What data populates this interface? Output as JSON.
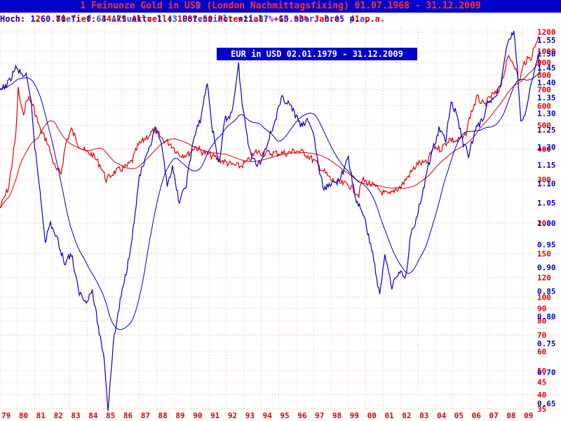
{
  "header": {
    "title_red": "1 Feinunze Gold in US$ (London Nachmittagsfixing) 01.07.1968 - 31.12.2009",
    "title_overlay": "1 Feinunze Gold in USD (London Nachmittagsfixing) 01.07.1968 - 31.12.2009",
    "stats_red": "Hoch: 1260.80  Tief: 34.75  Aktuell: 1087.50  Potenzial: +15.93%  Jahre: 41  p.a.",
    "stats_blue": "Hoch: 1.60  Tief: 0.64  Aktuell: 1.43  Potenzial: +11.87%  GD aber: 0.05 p.a."
  },
  "subtitle": "EUR in USD 02.01.1979 - 31.12.2009",
  "colors": {
    "gold": "#e00000",
    "eur": "#0000d0",
    "title_bg": "#0000c8",
    "grid": "#ff8080"
  },
  "chart_data": {
    "type": "line",
    "x_ticks": [
      "79",
      "80",
      "81",
      "82",
      "83",
      "84",
      "85",
      "86",
      "87",
      "88",
      "89",
      "90",
      "91",
      "92",
      "93",
      "94",
      "95",
      "96",
      "97",
      "98",
      "99",
      "00",
      "01",
      "02",
      "03",
      "04",
      "05",
      "06",
      "07",
      "08",
      "09"
    ],
    "x_range": [
      1979,
      2010
    ],
    "y_right_eur": {
      "ticks": [
        "0.65",
        "0.70",
        "0.75",
        "0.80",
        "0.85",
        "0.90",
        "0.95",
        "1.00",
        "1.05",
        "1.10",
        "1.15",
        "1.20",
        "1.25",
        "1.30",
        "1.35",
        "1.40",
        "1.45",
        "1.50",
        "1.55"
      ],
      "range": [
        0.64,
        1.6
      ],
      "scale": "log"
    },
    "y_right_gold": {
      "ticks": [
        "35",
        "40",
        "45",
        "50",
        "60",
        "70",
        "80",
        "90",
        "100",
        "120",
        "150",
        "200",
        "300",
        "400",
        "500",
        "600",
        "700",
        "800",
        "900",
        "1000",
        "1200"
      ],
      "range": [
        34.75,
        1260
      ],
      "scale": "log"
    },
    "series": [
      {
        "name": "Gold (USD)",
        "color": "#e00000",
        "points": [
          [
            1979.0,
            230
          ],
          [
            1979.5,
            280
          ],
          [
            1979.9,
            450
          ],
          [
            1980.05,
            700
          ],
          [
            1980.3,
            550
          ],
          [
            1980.6,
            650
          ],
          [
            1980.9,
            600
          ],
          [
            1981.3,
            480
          ],
          [
            1981.7,
            430
          ],
          [
            1982.2,
            330
          ],
          [
            1982.5,
            320
          ],
          [
            1982.8,
            430
          ],
          [
            1983.1,
            480
          ],
          [
            1983.5,
            420
          ],
          [
            1983.9,
            390
          ],
          [
            1984.3,
            380
          ],
          [
            1984.8,
            340
          ],
          [
            1985.1,
            300
          ],
          [
            1985.5,
            320
          ],
          [
            1985.9,
            330
          ],
          [
            1986.3,
            340
          ],
          [
            1986.6,
            360
          ],
          [
            1986.9,
            410
          ],
          [
            1987.3,
            440
          ],
          [
            1987.9,
            480
          ],
          [
            1988.3,
            440
          ],
          [
            1988.8,
            420
          ],
          [
            1989.3,
            380
          ],
          [
            1989.8,
            380
          ],
          [
            1990.2,
            410
          ],
          [
            1990.6,
            390
          ],
          [
            1991.0,
            380
          ],
          [
            1991.5,
            365
          ],
          [
            1991.9,
            355
          ],
          [
            1992.3,
            345
          ],
          [
            1992.8,
            340
          ],
          [
            1993.3,
            360
          ],
          [
            1993.7,
            390
          ],
          [
            1994.1,
            385
          ],
          [
            1994.5,
            385
          ],
          [
            1995.0,
            385
          ],
          [
            1995.5,
            385
          ],
          [
            1996.0,
            395
          ],
          [
            1996.5,
            385
          ],
          [
            1997.0,
            360
          ],
          [
            1997.5,
            330
          ],
          [
            1998.0,
            300
          ],
          [
            1998.5,
            290
          ],
          [
            1999.0,
            287
          ],
          [
            1999.6,
            260
          ],
          [
            1999.8,
            300
          ],
          [
            2000.2,
            290
          ],
          [
            2000.7,
            275
          ],
          [
            2001.0,
            265
          ],
          [
            2001.4,
            260
          ],
          [
            2001.7,
            275
          ],
          [
            2002.0,
            280
          ],
          [
            2002.5,
            315
          ],
          [
            2003.0,
            350
          ],
          [
            2003.5,
            350
          ],
          [
            2003.9,
            410
          ],
          [
            2004.3,
            400
          ],
          [
            2004.8,
            440
          ],
          [
            2005.2,
            430
          ],
          [
            2005.7,
            450
          ],
          [
            2006.0,
            550
          ],
          [
            2006.4,
            650
          ],
          [
            2006.8,
            600
          ],
          [
            2007.2,
            660
          ],
          [
            2007.6,
            680
          ],
          [
            2007.9,
            800
          ],
          [
            2008.2,
            950
          ],
          [
            2008.5,
            900
          ],
          [
            2008.8,
            750
          ],
          [
            2009.1,
            900
          ],
          [
            2009.5,
            950
          ],
          [
            2009.9,
            1150
          ],
          [
            2010.0,
            1087
          ]
        ]
      },
      {
        "name": "EUR in USD",
        "color": "#0000d0",
        "points": [
          [
            1979.0,
            1.37
          ],
          [
            1979.5,
            1.4
          ],
          [
            1979.9,
            1.45
          ],
          [
            1980.2,
            1.43
          ],
          [
            1980.5,
            1.42
          ],
          [
            1980.8,
            1.33
          ],
          [
            1981.0,
            1.2
          ],
          [
            1981.3,
            1.08
          ],
          [
            1981.6,
            0.96
          ],
          [
            1981.9,
            1.0
          ],
          [
            1982.3,
            0.96
          ],
          [
            1982.7,
            0.91
          ],
          [
            1983.1,
            0.93
          ],
          [
            1983.5,
            0.85
          ],
          [
            1983.9,
            0.83
          ],
          [
            1984.3,
            0.85
          ],
          [
            1984.7,
            0.77
          ],
          [
            1985.0,
            0.72
          ],
          [
            1985.2,
            0.64
          ],
          [
            1985.5,
            0.75
          ],
          [
            1985.9,
            0.83
          ],
          [
            1986.3,
            0.9
          ],
          [
            1986.7,
            1.0
          ],
          [
            1987.0,
            1.12
          ],
          [
            1987.5,
            1.18
          ],
          [
            1987.9,
            1.25
          ],
          [
            1988.2,
            1.22
          ],
          [
            1988.6,
            1.1
          ],
          [
            1988.9,
            1.14
          ],
          [
            1989.3,
            1.05
          ],
          [
            1989.7,
            1.1
          ],
          [
            1990.1,
            1.22
          ],
          [
            1990.5,
            1.28
          ],
          [
            1990.9,
            1.4
          ],
          [
            1991.2,
            1.25
          ],
          [
            1991.6,
            1.15
          ],
          [
            1991.9,
            1.28
          ],
          [
            1992.3,
            1.3
          ],
          [
            1992.7,
            1.46
          ],
          [
            1992.9,
            1.33
          ],
          [
            1993.3,
            1.2
          ],
          [
            1993.7,
            1.15
          ],
          [
            1994.0,
            1.16
          ],
          [
            1994.4,
            1.22
          ],
          [
            1994.8,
            1.28
          ],
          [
            1995.2,
            1.35
          ],
          [
            1995.6,
            1.33
          ],
          [
            1995.9,
            1.3
          ],
          [
            1996.3,
            1.26
          ],
          [
            1996.7,
            1.28
          ],
          [
            1997.0,
            1.24
          ],
          [
            1997.3,
            1.14
          ],
          [
            1997.6,
            1.08
          ],
          [
            1997.9,
            1.1
          ],
          [
            1998.3,
            1.1
          ],
          [
            1998.7,
            1.13
          ],
          [
            1999.0,
            1.17
          ],
          [
            1999.4,
            1.06
          ],
          [
            1999.8,
            1.03
          ],
          [
            2000.1,
            0.98
          ],
          [
            2000.4,
            0.93
          ],
          [
            2000.8,
            0.84
          ],
          [
            2001.1,
            0.93
          ],
          [
            2001.5,
            0.86
          ],
          [
            2001.9,
            0.89
          ],
          [
            2002.3,
            0.88
          ],
          [
            2002.6,
            0.98
          ],
          [
            2002.9,
            1.01
          ],
          [
            2003.3,
            1.08
          ],
          [
            2003.6,
            1.15
          ],
          [
            2003.9,
            1.2
          ],
          [
            2004.2,
            1.25
          ],
          [
            2004.6,
            1.22
          ],
          [
            2004.9,
            1.34
          ],
          [
            2005.2,
            1.3
          ],
          [
            2005.6,
            1.21
          ],
          [
            2005.9,
            1.18
          ],
          [
            2006.3,
            1.25
          ],
          [
            2006.7,
            1.28
          ],
          [
            2006.9,
            1.32
          ],
          [
            2007.3,
            1.35
          ],
          [
            2007.7,
            1.38
          ],
          [
            2007.9,
            1.46
          ],
          [
            2008.2,
            1.55
          ],
          [
            2008.5,
            1.58
          ],
          [
            2008.7,
            1.45
          ],
          [
            2008.9,
            1.27
          ],
          [
            2009.2,
            1.3
          ],
          [
            2009.5,
            1.4
          ],
          [
            2009.9,
            1.49
          ],
          [
            2010.0,
            1.43
          ]
        ]
      }
    ]
  }
}
